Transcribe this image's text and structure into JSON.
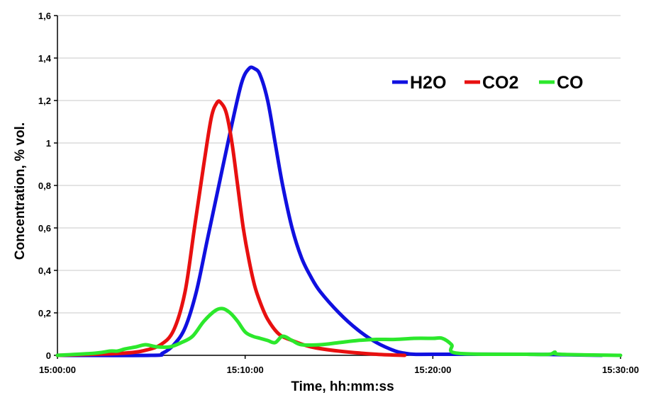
{
  "chart_data": {
    "type": "line",
    "title": "",
    "xlabel": "Time, hh:mm:ss",
    "ylabel": "Concentration, % vol.",
    "xlim": [
      0,
      30
    ],
    "ylim": [
      0,
      1.6
    ],
    "x_unit": "minutes after 15:00:00",
    "x_ticks": [
      {
        "value": 0,
        "label": "15:00:00"
      },
      {
        "value": 10,
        "label": "15:10:00"
      },
      {
        "value": 20,
        "label": "15:20:00"
      },
      {
        "value": 30,
        "label": "15:30:00"
      }
    ],
    "y_ticks": [
      {
        "value": 0,
        "label": "0"
      },
      {
        "value": 0.2,
        "label": "0,2"
      },
      {
        "value": 0.4,
        "label": "0,4"
      },
      {
        "value": 0.6,
        "label": "0,6"
      },
      {
        "value": 0.8,
        "label": "0,8"
      },
      {
        "value": 1.0,
        "label": "1"
      },
      {
        "value": 1.2,
        "label": "1,2"
      },
      {
        "value": 1.4,
        "label": "1,4"
      },
      {
        "value": 1.6,
        "label": "1,6"
      }
    ],
    "grid": true,
    "legend_position": "top-right",
    "series": [
      {
        "name": "H2O",
        "color": "#1010e0",
        "x": [
          0,
          5,
          5.6,
          6.2,
          6.8,
          7.4,
          8.0,
          8.6,
          9.2,
          9.8,
          10.2,
          10.5,
          10.8,
          11.2,
          11.6,
          12.0,
          12.5,
          13.0,
          13.5,
          14.0,
          15.0,
          16.0,
          17.0,
          18.0,
          18.5,
          19.0,
          20.0,
          25.0,
          29.0
        ],
        "y": [
          0,
          0,
          0.01,
          0.05,
          0.13,
          0.3,
          0.55,
          0.8,
          1.05,
          1.28,
          1.35,
          1.35,
          1.32,
          1.2,
          1.0,
          0.8,
          0.6,
          0.46,
          0.37,
          0.3,
          0.2,
          0.12,
          0.06,
          0.02,
          0.01,
          0.005,
          0.005,
          0.005,
          0
        ]
      },
      {
        "name": "CO2",
        "color": "#e81010",
        "x": [
          0,
          2,
          3.5,
          4.5,
          5.5,
          6.2,
          6.8,
          7.3,
          7.8,
          8.2,
          8.5,
          8.7,
          9.0,
          9.3,
          9.6,
          9.9,
          10.2,
          10.5,
          10.8,
          11.2,
          11.8,
          12.5,
          13.5,
          15.0,
          17.0,
          18.5
        ],
        "y": [
          0,
          0.005,
          0.01,
          0.02,
          0.05,
          0.12,
          0.3,
          0.6,
          0.9,
          1.12,
          1.19,
          1.19,
          1.14,
          1.0,
          0.8,
          0.6,
          0.45,
          0.33,
          0.25,
          0.17,
          0.1,
          0.07,
          0.04,
          0.02,
          0.005,
          0
        ]
      },
      {
        "name": "CO",
        "color": "#2ce82c",
        "x": [
          0,
          2,
          2.8,
          3.2,
          3.6,
          4.2,
          4.7,
          5.3,
          6.0,
          6.6,
          7.2,
          7.8,
          8.4,
          8.8,
          9.2,
          9.6,
          10.0,
          10.4,
          10.8,
          11.2,
          11.6,
          12.0,
          12.5,
          13.0,
          14.0,
          15.0,
          16.0,
          17.0,
          18.0,
          19.0,
          20.0,
          20.5,
          21.0,
          21.3,
          25.0,
          26.2,
          26.5,
          26.8,
          30.0
        ],
        "y": [
          0,
          0.01,
          0.02,
          0.02,
          0.03,
          0.04,
          0.05,
          0.04,
          0.04,
          0.06,
          0.09,
          0.16,
          0.21,
          0.22,
          0.2,
          0.16,
          0.11,
          0.09,
          0.08,
          0.07,
          0.06,
          0.09,
          0.07,
          0.05,
          0.05,
          0.06,
          0.07,
          0.075,
          0.075,
          0.08,
          0.08,
          0.08,
          0.05,
          0.01,
          0.005,
          0.005,
          0.015,
          0.005,
          0
        ]
      }
    ]
  }
}
